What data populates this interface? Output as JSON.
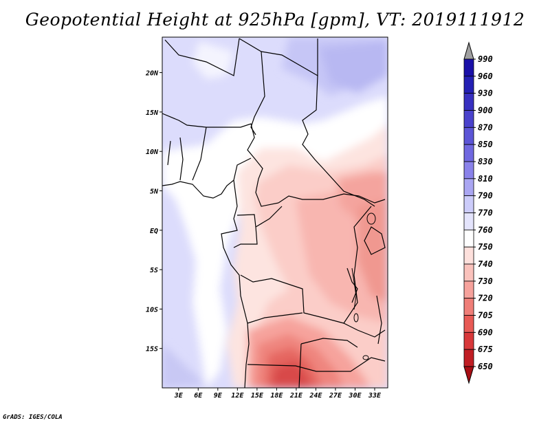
{
  "title": "Geopotential Height at 925hPa [gpm], VT: 2019111912",
  "credit": "GrADS: IGES/COLA",
  "map": {
    "lon_ticks": [
      "3E",
      "6E",
      "9E",
      "12E",
      "15E",
      "18E",
      "21E",
      "24E",
      "27E",
      "30E",
      "33E"
    ],
    "lat_ticks": [
      "20N",
      "15N",
      "10N",
      "5N",
      "EQ",
      "5S",
      "10S",
      "15S"
    ],
    "lon_range": [
      0.5,
      35
    ],
    "lat_range": [
      -20,
      24.5
    ]
  },
  "colorbar": {
    "levels": [
      "990",
      "960",
      "930",
      "900",
      "870",
      "850",
      "830",
      "810",
      "790",
      "770",
      "760",
      "750",
      "740",
      "730",
      "720",
      "705",
      "690",
      "675",
      "650"
    ],
    "colors": [
      "#a0a0a0",
      "#1a10a8",
      "#2420b4",
      "#3830c0",
      "#4a42cc",
      "#5c55d6",
      "#7068e0",
      "#8a82ea",
      "#aaa6f2",
      "#ccccfa",
      "#e4e4fc",
      "#ffffff",
      "#fde0dc",
      "#fac2bc",
      "#f6a29c",
      "#ef7e78",
      "#e85a55",
      "#d8383a",
      "#c01e24",
      "#a80e14"
    ]
  }
}
